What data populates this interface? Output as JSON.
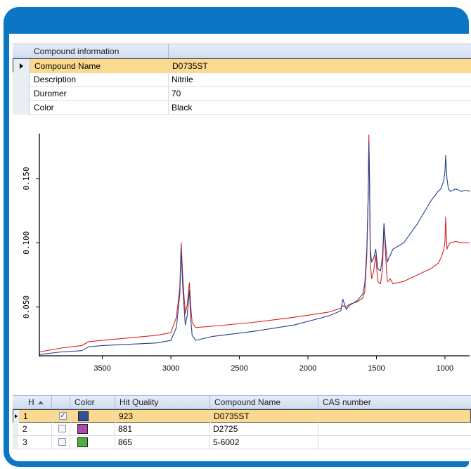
{
  "colors": {
    "frame": "#0a76c4",
    "selection": "#fbd98e",
    "sample": "#d92020",
    "reference": "#23408c"
  },
  "properties": {
    "header": "Compound information",
    "rows": [
      {
        "key": "Compound Name",
        "value": "D0735ST",
        "selected": true
      },
      {
        "key": "Description",
        "value": "Nitrile"
      },
      {
        "key": "Duromer",
        "value": "70"
      },
      {
        "key": "Color",
        "value": "Black"
      }
    ]
  },
  "chart_data": {
    "type": "line",
    "xlabel": "",
    "ylabel": "",
    "xlim": [
      3960,
      820
    ],
    "ylim": [
      0.012,
      0.185
    ],
    "x_ticks": [
      3500,
      3000,
      2500,
      2000,
      1500,
      1000
    ],
    "y_ticks": [
      0.05,
      0.1,
      0.15
    ],
    "y_tick_labels": [
      "0.050",
      "0.100",
      "0.150"
    ],
    "series": [
      {
        "color": "#d92020",
        "x": [
          3960,
          3800,
          3650,
          3600,
          3500,
          3300,
          3100,
          3000,
          2960,
          2935,
          2925,
          2912,
          2895,
          2880,
          2865,
          2855,
          2845,
          2820,
          2700,
          2400,
          2100,
          1850,
          1760,
          1745,
          1720,
          1700,
          1640,
          1600,
          1585,
          1570,
          1560,
          1555,
          1550,
          1545,
          1535,
          1520,
          1505,
          1490,
          1470,
          1455,
          1445,
          1430,
          1420,
          1410,
          1400,
          1380,
          1300,
          1200,
          1100,
          1050,
          1030,
          1010,
          1000,
          995,
          985,
          975,
          960,
          920,
          880,
          850,
          820
        ],
        "y": [
          0.015,
          0.018,
          0.02,
          0.023,
          0.024,
          0.026,
          0.028,
          0.03,
          0.042,
          0.065,
          0.1,
          0.07,
          0.045,
          0.052,
          0.069,
          0.05,
          0.038,
          0.034,
          0.035,
          0.038,
          0.042,
          0.046,
          0.049,
          0.051,
          0.05,
          0.052,
          0.054,
          0.057,
          0.062,
          0.09,
          0.14,
          0.184,
          0.15,
          0.085,
          0.072,
          0.078,
          0.09,
          0.07,
          0.068,
          0.08,
          0.115,
          0.085,
          0.07,
          0.07,
          0.072,
          0.068,
          0.07,
          0.075,
          0.08,
          0.084,
          0.088,
          0.094,
          0.1,
          0.12,
          0.095,
          0.098,
          0.1,
          0.101,
          0.1,
          0.1,
          0.1
        ]
      },
      {
        "color": "#23408c",
        "x": [
          3960,
          3800,
          3650,
          3600,
          3500,
          3300,
          3100,
          3000,
          2960,
          2935,
          2925,
          2912,
          2895,
          2880,
          2865,
          2855,
          2845,
          2820,
          2700,
          2400,
          2100,
          1850,
          1760,
          1745,
          1720,
          1700,
          1640,
          1600,
          1585,
          1570,
          1560,
          1555,
          1550,
          1545,
          1535,
          1520,
          1505,
          1490,
          1470,
          1455,
          1445,
          1430,
          1420,
          1410,
          1400,
          1380,
          1300,
          1200,
          1100,
          1050,
          1030,
          1010,
          1000,
          995,
          985,
          975,
          960,
          920,
          880,
          850,
          820
        ],
        "y": [
          0.013,
          0.015,
          0.016,
          0.019,
          0.02,
          0.021,
          0.022,
          0.024,
          0.034,
          0.06,
          0.095,
          0.062,
          0.036,
          0.044,
          0.063,
          0.04,
          0.028,
          0.024,
          0.027,
          0.031,
          0.036,
          0.043,
          0.047,
          0.056,
          0.048,
          0.051,
          0.055,
          0.06,
          0.068,
          0.095,
          0.135,
          0.178,
          0.145,
          0.095,
          0.085,
          0.088,
          0.095,
          0.08,
          0.078,
          0.09,
          0.115,
          0.095,
          0.085,
          0.088,
          0.09,
          0.095,
          0.1,
          0.115,
          0.133,
          0.14,
          0.142,
          0.148,
          0.155,
          0.168,
          0.15,
          0.142,
          0.14,
          0.142,
          0.14,
          0.141,
          0.14
        ]
      }
    ]
  },
  "hits": {
    "columns": [
      "H",
      "",
      "Color",
      "Hit Quality",
      "Compound Name",
      "CAS number"
    ],
    "rows": [
      {
        "h": "1",
        "checked": true,
        "check_mark": "✓",
        "color": "#2f4fa3",
        "quality": "923",
        "name": "D0735ST",
        "cas": "",
        "selected": true
      },
      {
        "h": "2",
        "checked": false,
        "check_mark": "",
        "color": "#b04aaa",
        "quality": "881",
        "name": "D2725",
        "cas": ""
      },
      {
        "h": "3",
        "checked": false,
        "check_mark": "",
        "color": "#4cae3e",
        "quality": "865",
        "name": "5-6002",
        "cas": ""
      }
    ]
  }
}
